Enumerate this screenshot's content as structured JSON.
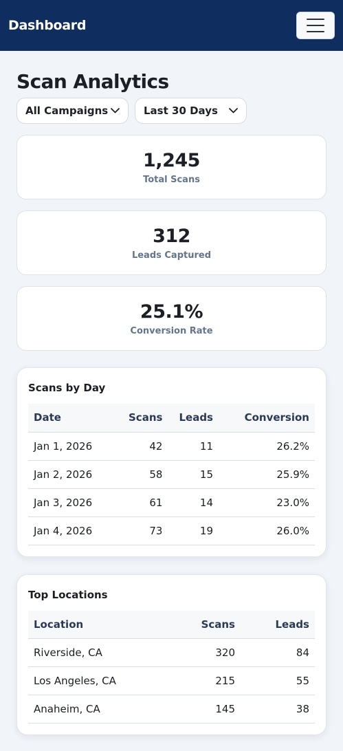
{
  "header": {
    "brand": "Dashboard",
    "menu_icon": "hamburger-menu-icon"
  },
  "page": {
    "title": "Scan Analytics"
  },
  "filters": {
    "campaign": "All Campaigns",
    "range": "Last 30 Days",
    "icon": "chevron-down-icon"
  },
  "stats": [
    {
      "value": "1,245",
      "label": "Total Scans"
    },
    {
      "value": "312",
      "label": "Leads Captured"
    },
    {
      "value": "25.1%",
      "label": "Conversion Rate"
    }
  ],
  "scans_by_day": {
    "title": "Scans by Day",
    "columns": [
      "Date",
      "Scans",
      "Leads",
      "Conversion"
    ],
    "rows": [
      [
        "Jan 1, 2026",
        "42",
        "11",
        "26.2%"
      ],
      [
        "Jan 2, 2026",
        "58",
        "15",
        "25.9%"
      ],
      [
        "Jan 3, 2026",
        "61",
        "14",
        "23.0%"
      ],
      [
        "Jan 4, 2026",
        "73",
        "19",
        "26.0%"
      ]
    ]
  },
  "top_locations": {
    "title": "Top Locations",
    "columns": [
      "Location",
      "Scans",
      "Leads"
    ],
    "rows": [
      [
        "Riverside, CA",
        "320",
        "84"
      ],
      [
        "Los Angeles, CA",
        "215",
        "55"
      ],
      [
        "Anaheim, CA",
        "145",
        "38"
      ]
    ]
  },
  "colors": {
    "navbar": "#0f2d5f",
    "background": "#f1f4f9",
    "muted_label": "#64748b",
    "table_header_text": "#2a3a55"
  }
}
